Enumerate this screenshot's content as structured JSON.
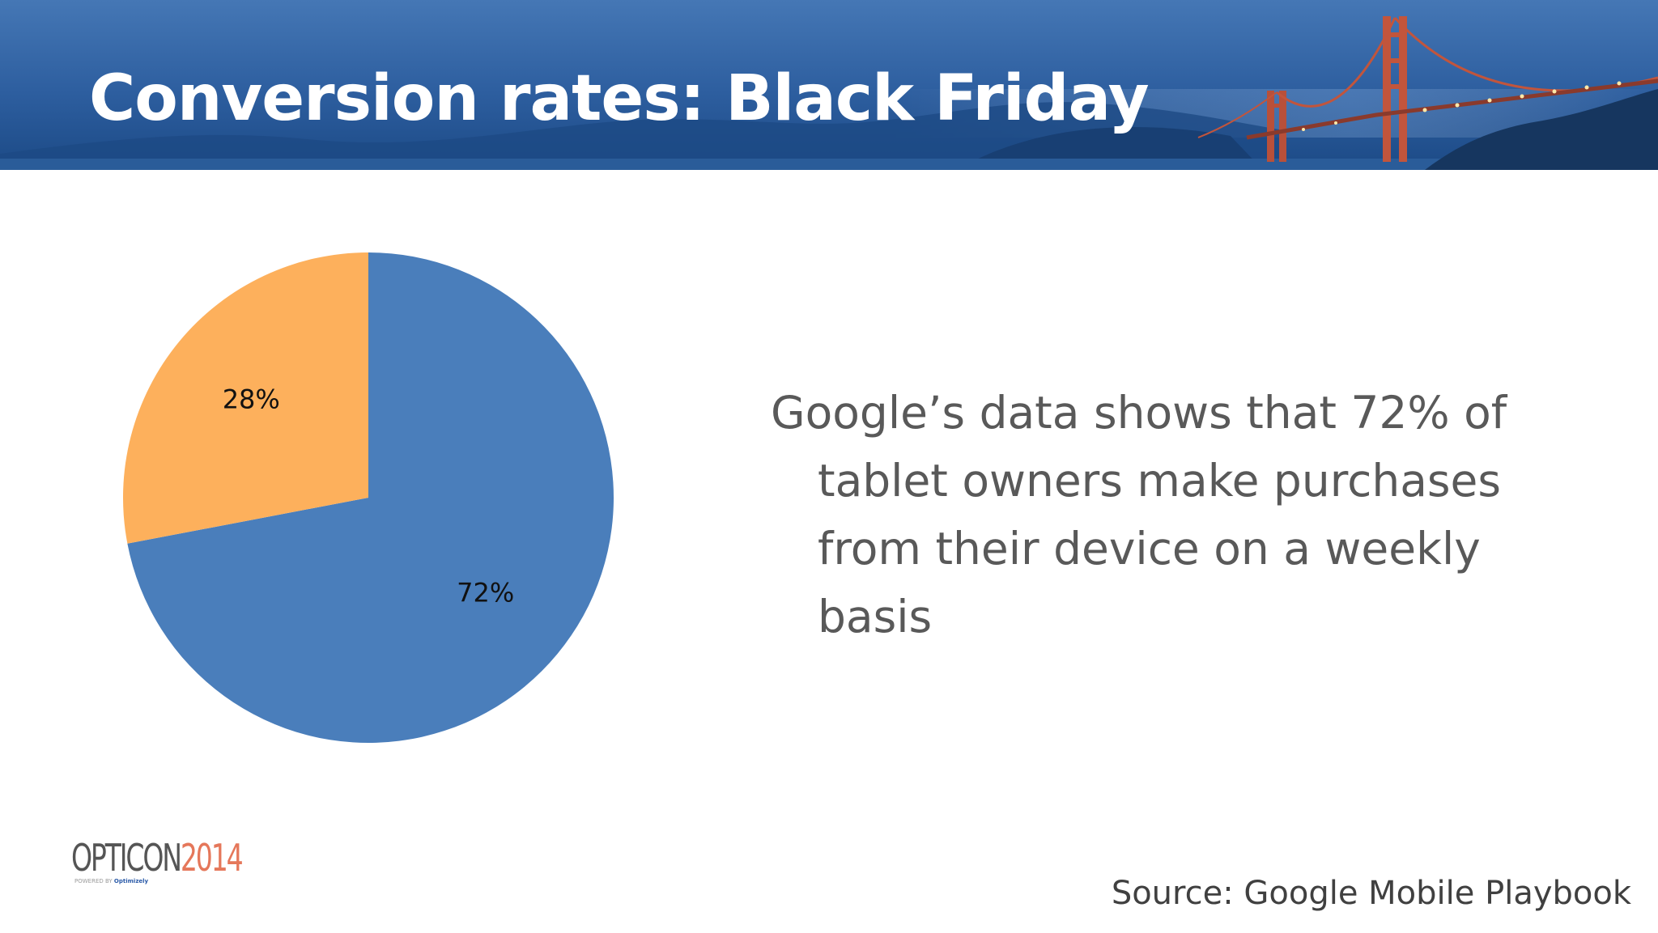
{
  "slide": {
    "title": "Conversion rates: Black Friday",
    "body": "Google’s data shows that 72% of tablet owners make purchases from their device on a weekly basis",
    "source": "Source: Google Mobile Playbook"
  },
  "logo": {
    "word": "OPTICON",
    "year": "2014",
    "sub_prefix": "POWERED BY",
    "sub_brand": "Optimizely"
  },
  "colors": {
    "header": "#2f5f9e",
    "slice_a": "#4a7ebb",
    "slice_b": "#fdb05c",
    "body_text": "#595959",
    "logo_year": "#e5775a"
  },
  "chart_data": {
    "type": "pie",
    "title": "",
    "slices": [
      {
        "label": "72%",
        "value": 72,
        "color": "#4a7ebb"
      },
      {
        "label": "28%",
        "value": 28,
        "color": "#fdb05c"
      }
    ],
    "start": "12 o'clock",
    "direction": "clockwise",
    "legend": "none"
  }
}
